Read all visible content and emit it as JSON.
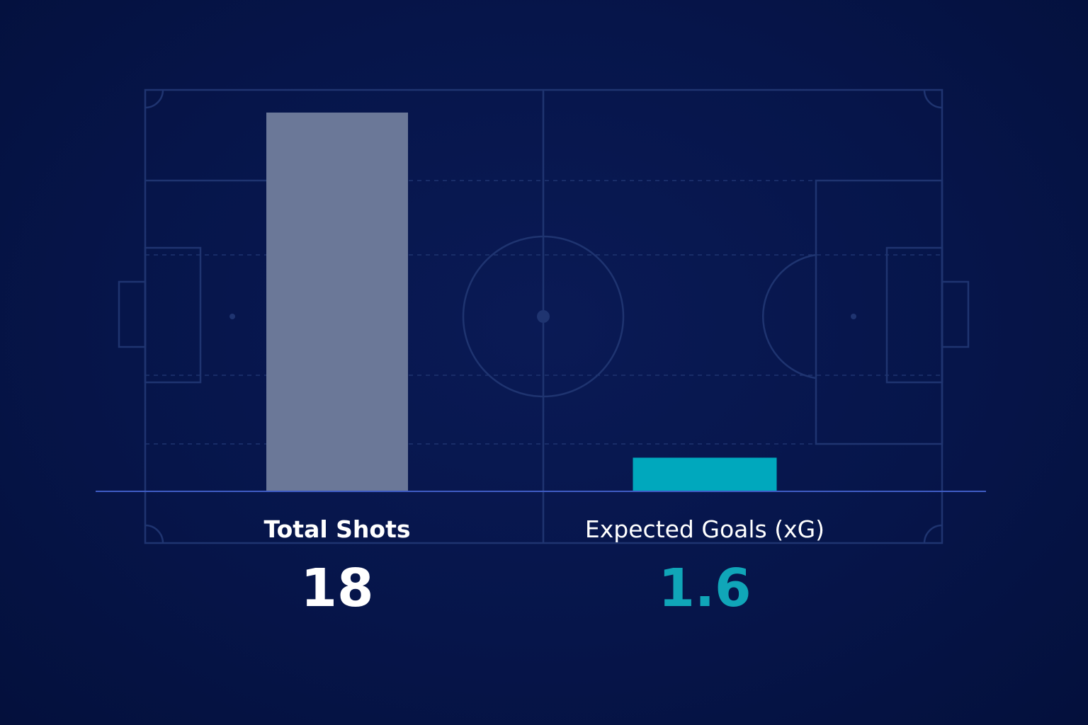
{
  "chart_data": {
    "type": "bar",
    "categories": [
      "Total Shots",
      "Expected Goals (xG)"
    ],
    "values": [
      18,
      1.6
    ],
    "value_labels": [
      "18",
      "1.6"
    ],
    "colors": [
      "#6b7898",
      "#00a8bd"
    ],
    "label_colors": [
      "#ffffff",
      "#10a6b8"
    ],
    "category_bold": [
      true,
      false
    ],
    "title": "",
    "xlabel": "",
    "ylabel": "",
    "grid": false,
    "background": "football-pitch"
  }
}
